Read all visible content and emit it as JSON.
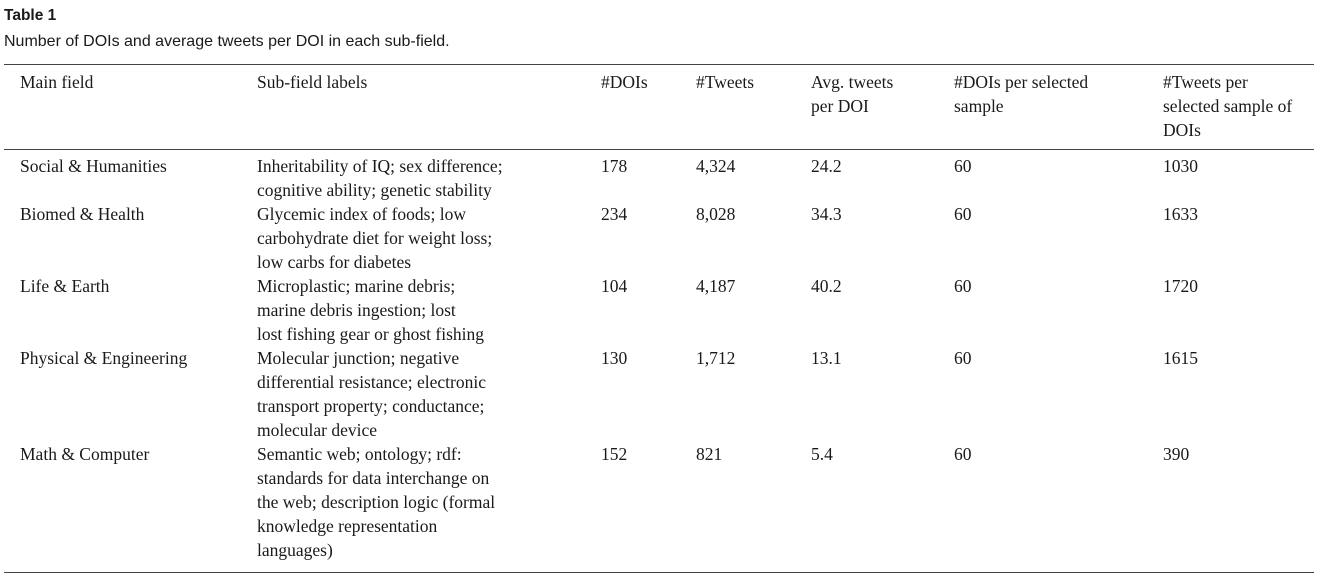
{
  "table": {
    "label": "Table 1",
    "caption": "Number of DOIs and average tweets per DOI in each sub-field.",
    "headers": {
      "main_field": "Main field",
      "sub_field": "Sub-field labels",
      "dois": "#DOIs",
      "tweets": "#Tweets",
      "avg_line1": "Avg. tweets",
      "avg_line2": "per DOI",
      "dois_sel_line1": "#DOIs per selected",
      "dois_sel_line2": "sample",
      "tweets_sel_line1": "#Tweets per",
      "tweets_sel_line2": "selected sample of",
      "tweets_sel_line3": "DOIs"
    },
    "rows": [
      {
        "main_field": "Social & Humanities",
        "sub_field_lines": [
          "Inheritability of IQ; sex difference;",
          "cognitive ability; genetic stability"
        ],
        "dois": "178",
        "tweets": "4,324",
        "avg": "24.2",
        "dois_selected": "60",
        "tweets_selected": "1030"
      },
      {
        "main_field": "Biomed & Health",
        "sub_field_lines": [
          "Glycemic index of foods; low",
          "carbohydrate diet for weight loss;",
          "low carbs for diabetes"
        ],
        "dois": "234",
        "tweets": "8,028",
        "avg": "34.3",
        "dois_selected": "60",
        "tweets_selected": "1633"
      },
      {
        "main_field": "Life & Earth",
        "sub_field_lines": [
          "Microplastic; marine debris;",
          "marine debris ingestion; lost",
          "lost fishing gear or ghost fishing"
        ],
        "dois": "104",
        "tweets": "4,187",
        "avg": "40.2",
        "dois_selected": "60",
        "tweets_selected": "1720"
      },
      {
        "main_field": "Physical & Engineering",
        "sub_field_lines": [
          "Molecular junction; negative",
          "differential resistance; electronic",
          "transport property; conductance;",
          "molecular device"
        ],
        "dois": "130",
        "tweets": "1,712",
        "avg": "13.1",
        "dois_selected": "60",
        "tweets_selected": "1615"
      },
      {
        "main_field": "Math & Computer",
        "sub_field_lines": [
          "Semantic web; ontology; rdf:",
          "standards for data interchange on",
          "the web; description logic (formal",
          "knowledge representation",
          "languages)"
        ],
        "dois": "152",
        "tweets": "821",
        "avg": "5.4",
        "dois_selected": "60",
        "tweets_selected": "390"
      }
    ]
  }
}
